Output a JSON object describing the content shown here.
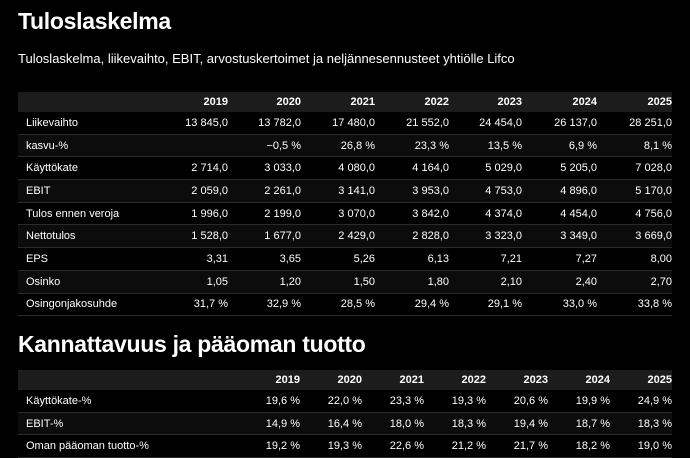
{
  "header": {
    "title": "Tuloslaskelma",
    "subtitle": "Tuloslaskelma, liikevaihto, EBIT, arvostuskertoimet ja neljännesennusteet yhtiölle Lifco"
  },
  "table": {
    "columns": [
      "2019",
      "2020",
      "2021",
      "2022",
      "2023",
      "2024",
      "2025"
    ],
    "rows": [
      [
        "Liikevaihto",
        "13 845,0",
        "13 782,0",
        "17 480,0",
        "21 552,0",
        "24 454,0",
        "26 137,0",
        "28 251,0"
      ],
      [
        "kasvu-%",
        "",
        "−0,5 %",
        "26,8 %",
        "23,3 %",
        "13,5 %",
        "6,9 %",
        "8,1 %"
      ],
      [
        "Käyttökate",
        "2 714,0",
        "3 033,0",
        "4 080,0",
        "4 164,0",
        "5 029,0",
        "5 205,0",
        "7 028,0"
      ],
      [
        "EBIT",
        "2 059,0",
        "2 261,0",
        "3 141,0",
        "3 953,0",
        "4 753,0",
        "4 896,0",
        "5 170,0"
      ],
      [
        "Tulos ennen veroja",
        "1 996,0",
        "2 199,0",
        "3 070,0",
        "3 842,0",
        "4 374,0",
        "4 454,0",
        "4 756,0"
      ],
      [
        "Nettotulos",
        "1 528,0",
        "1 677,0",
        "2 429,0",
        "2 828,0",
        "3 323,0",
        "3 349,0",
        "3 669,0"
      ],
      [
        "EPS",
        "3,31",
        "3,65",
        "5,26",
        "6,13",
        "7,21",
        "7,27",
        "8,00"
      ],
      [
        "Osinko",
        "1,05",
        "1,20",
        "1,50",
        "1,80",
        "2,10",
        "2,40",
        "2,70"
      ],
      [
        "Osingonjakosuhde",
        "31,7 %",
        "32,9 %",
        "28,5 %",
        "29,4 %",
        "29,1 %",
        "33,0 %",
        "33,8 %"
      ]
    ]
  },
  "section2": {
    "title": "Kannattavuus ja pääoman tuotto",
    "table": {
      "columns": [
        "2019",
        "2020",
        "2021",
        "2022",
        "2023",
        "2024",
        "2025"
      ],
      "rows": [
        [
          "Käyttökate-%",
          "19,6 %",
          "22,0 %",
          "23,3 %",
          "19,3 %",
          "20,6 %",
          "19,9 %",
          "24,9 %"
        ],
        [
          "EBIT-%",
          "14,9 %",
          "16,4 %",
          "18,0 %",
          "18,3 %",
          "19,4 %",
          "18,7 %",
          "18,3 %"
        ],
        [
          "Oman pääoman tuotto-%",
          "19,2 %",
          "19,3 %",
          "22,6 %",
          "21,2 %",
          "21,7 %",
          "18,2 %",
          "19,0 %"
        ]
      ]
    }
  }
}
